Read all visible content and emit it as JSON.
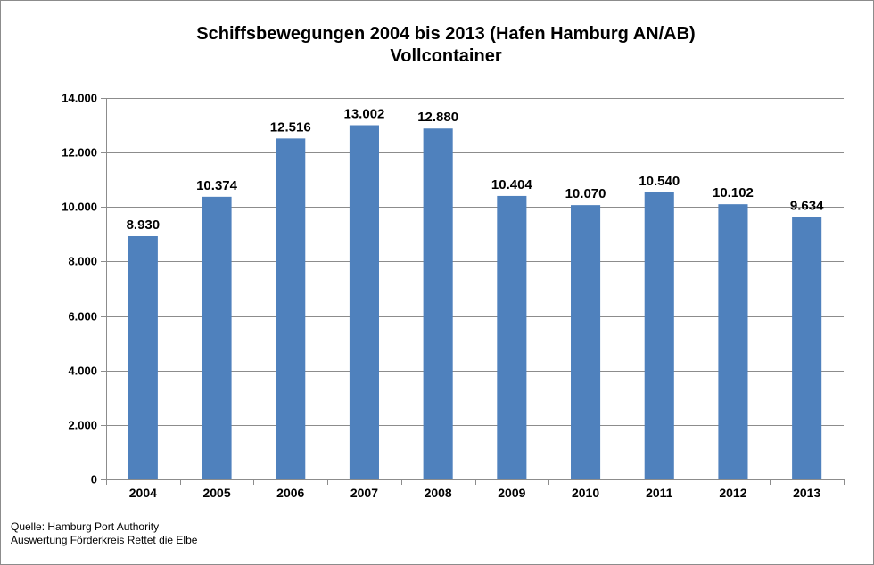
{
  "chart_data": {
    "type": "bar",
    "title": "Schiffsbewegungen 2004 bis 2013 (Hafen Hamburg AN/AB)",
    "subtitle": "Vollcontainer",
    "categories": [
      "2004",
      "2005",
      "2006",
      "2007",
      "2008",
      "2009",
      "2010",
      "2011",
      "2012",
      "2013"
    ],
    "values": [
      8930,
      10374,
      12516,
      13002,
      12880,
      10404,
      10070,
      10540,
      10102,
      9634
    ],
    "value_labels": [
      "8.930",
      "10.374",
      "12.516",
      "13.002",
      "12.880",
      "10.404",
      "10.070",
      "10.540",
      "10.102",
      "9.634"
    ],
    "yticks": [
      0,
      2000,
      4000,
      6000,
      8000,
      10000,
      12000,
      14000
    ],
    "ytick_labels": [
      "0",
      "2.000",
      "4.000",
      "6.000",
      "8.000",
      "10.000",
      "12.000",
      "14.000"
    ],
    "ylim": [
      0,
      14000
    ],
    "grid": true,
    "legend": "none",
    "bar_color": "#4f81bd"
  },
  "source": {
    "line1": "Quelle: Hamburg Port Authority",
    "line2": "Auswertung Förderkreis Rettet  die Elbe"
  }
}
